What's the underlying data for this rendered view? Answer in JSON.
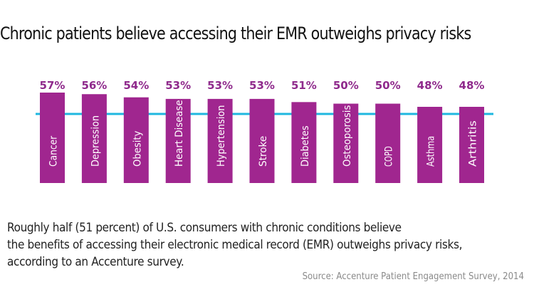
{
  "chart_data": {
    "type": "bar",
    "title": "Chronic patients believe accessing their EMR outweighs privacy risks",
    "categories": [
      "Cancer",
      "Depression",
      "Obesity",
      "Heart Disease",
      "Hypertension",
      "Stroke",
      "Diabetes",
      "Osteoporosis",
      "COPD",
      "Asthma",
      "Arthritis"
    ],
    "values": [
      57,
      56,
      54,
      53,
      53,
      53,
      51,
      50,
      50,
      48,
      48
    ],
    "data_labels": [
      "57%",
      "56%",
      "54%",
      "53%",
      "53%",
      "53%",
      "51%",
      "50%",
      "50%",
      "48%",
      "48%"
    ],
    "reference_line": 51,
    "xlabel": "",
    "ylabel": "",
    "grid": false,
    "legend": "none",
    "colors": {
      "bar": "#a0268f",
      "label": "#8f2a8c",
      "reference_line": "#1fb7e0",
      "bar_text": "#ffffff"
    }
  },
  "caption": {
    "lines": [
      "Roughly half (51 percent) of U.S. consumers with chronic conditions believe",
      "the benefits of accessing their electronic medical record (EMR) outweighs privacy risks,",
      "according to an Accenture survey."
    ]
  },
  "source": "Source: Accenture Patient Engagement Survey, 2014"
}
